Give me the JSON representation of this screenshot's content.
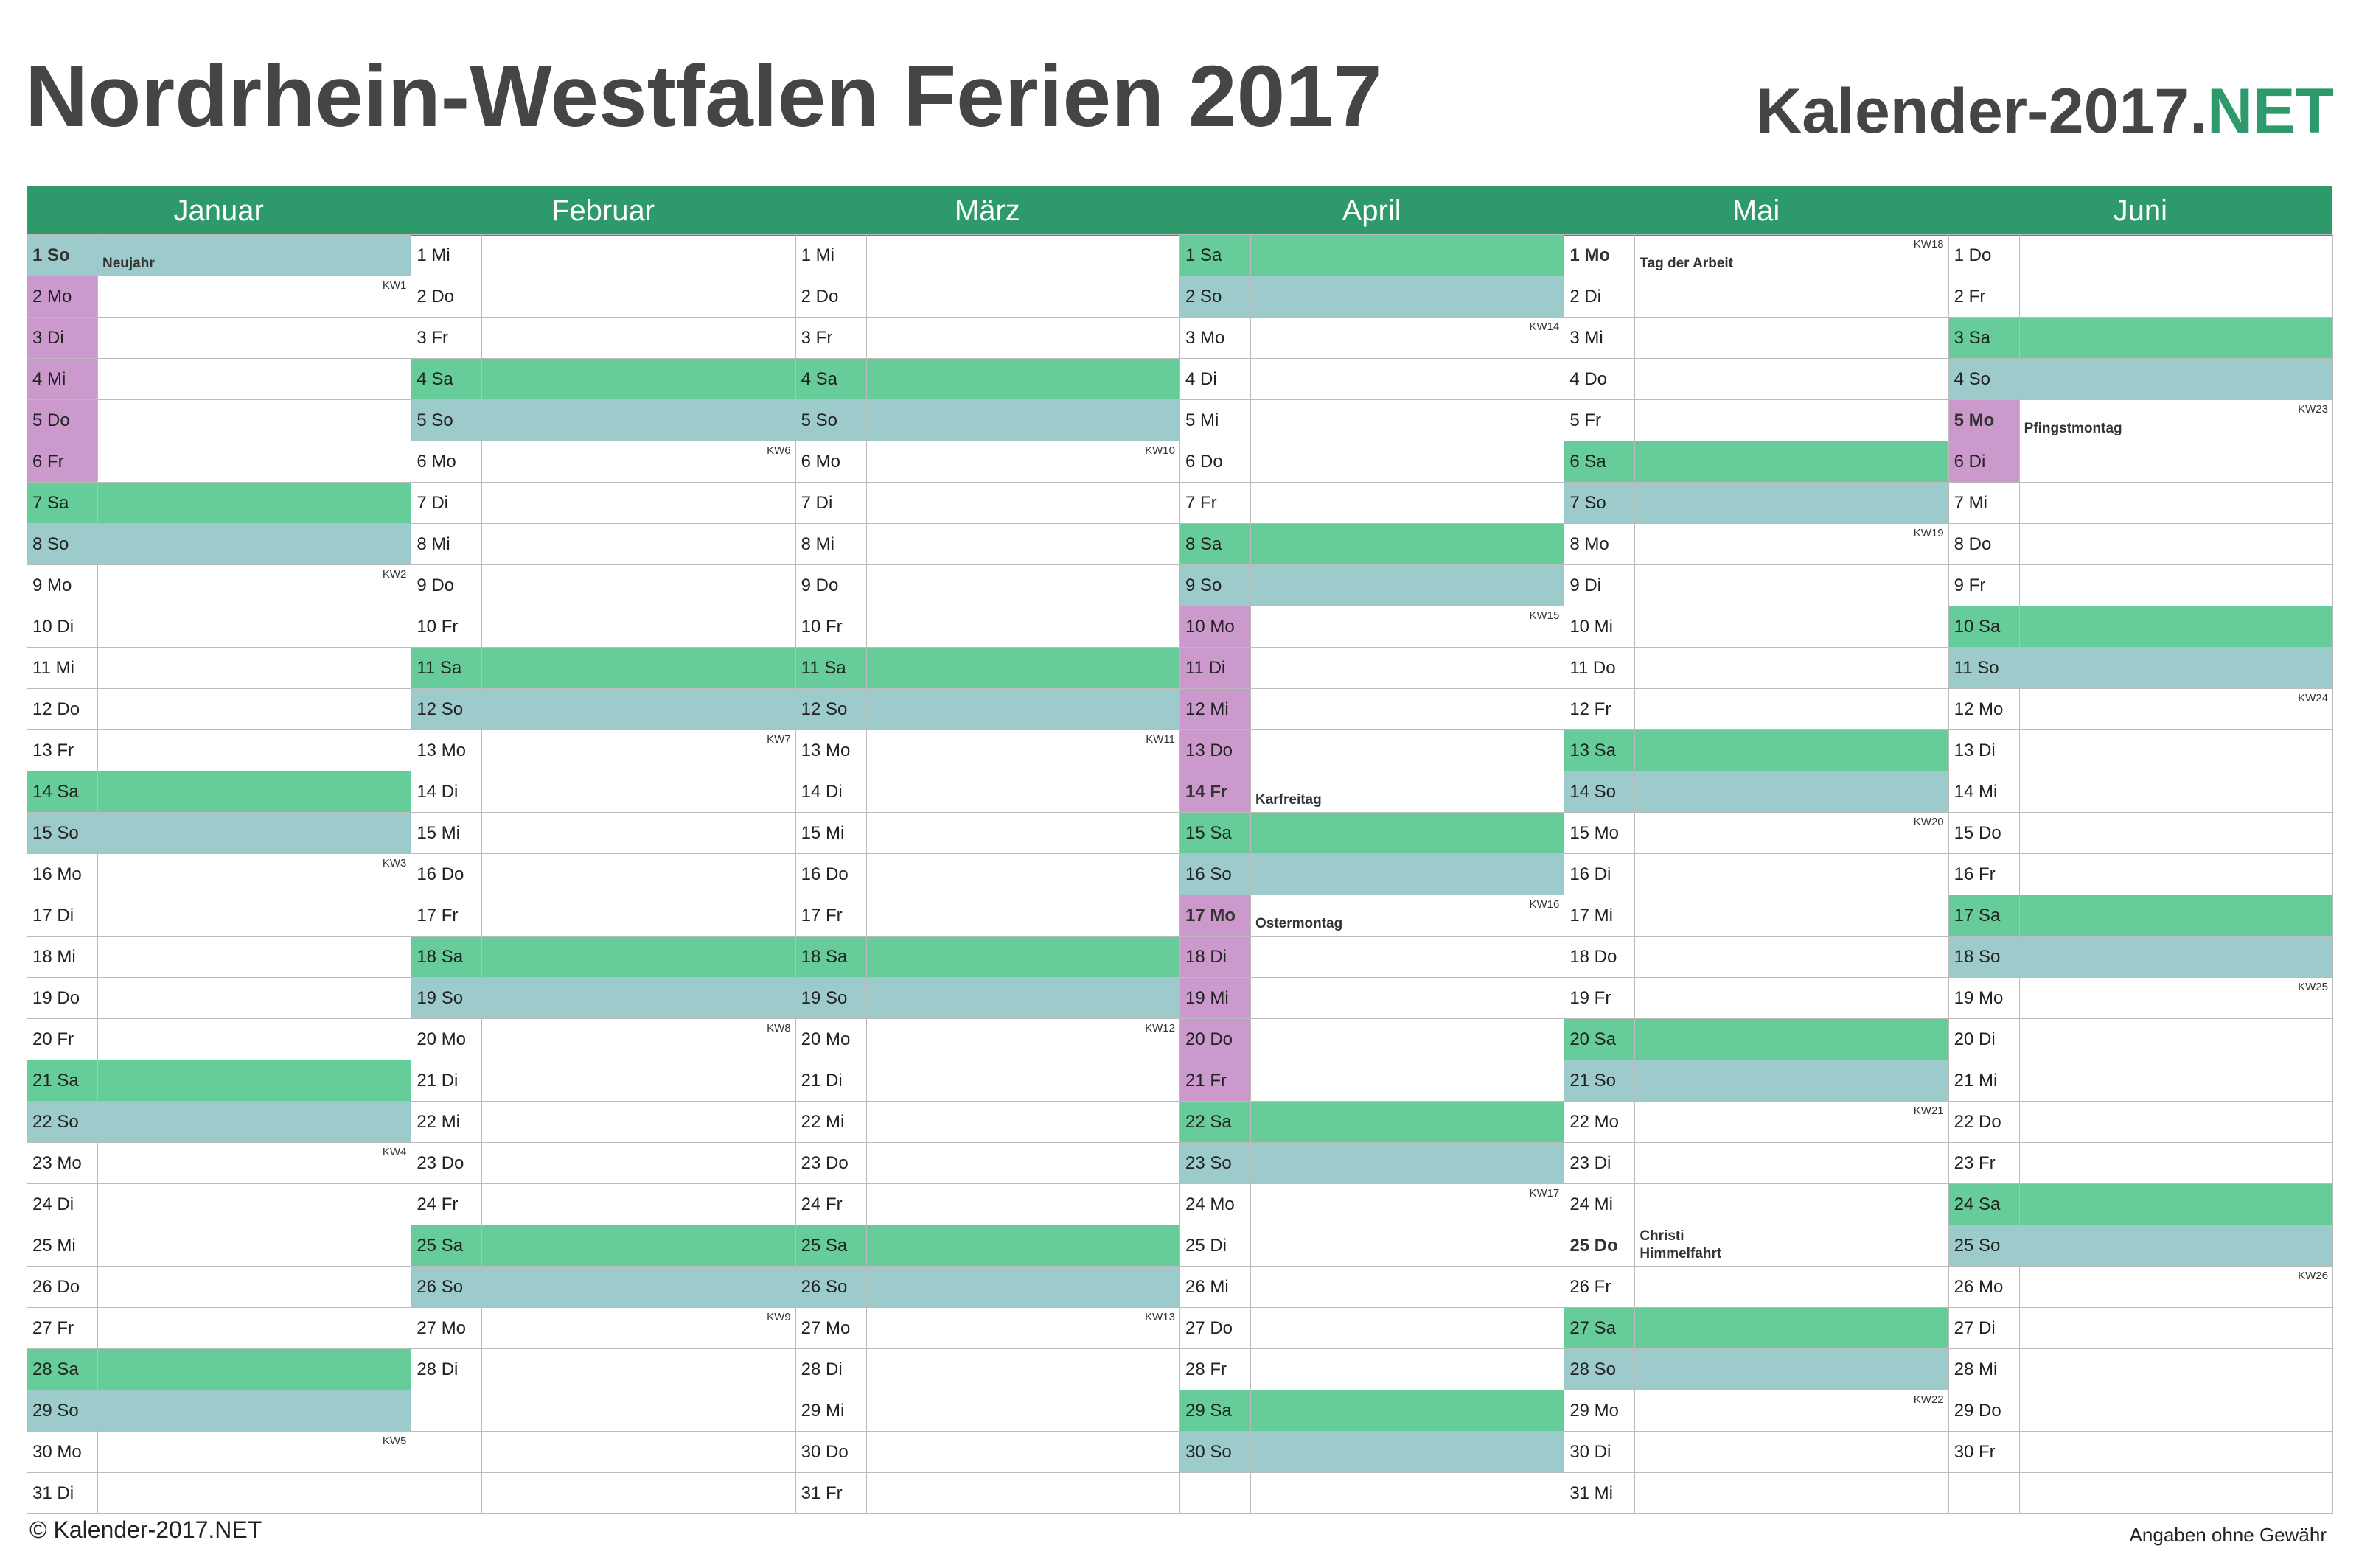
{
  "header": {
    "title": "Nordrhein-Westfalen Ferien 2017",
    "brand_main": "Kalender-2017.",
    "brand_suffix": "NET"
  },
  "footer": {
    "copyright": "© Kalender-2017.NET",
    "disclaimer": "Angaben ohne Gewähr"
  },
  "colors": {
    "accent": "#2e9a6c",
    "saturday": "#66cc99",
    "sunday": "#9dcbcb",
    "vacation": "#cc99cc",
    "title": "#454545"
  },
  "months": [
    {
      "name": "Januar",
      "days": [
        {
          "label": "1 So",
          "type": "sun",
          "holiday": "Neujahr",
          "bold": true
        },
        {
          "label": "2 Mo",
          "vac": true,
          "kw": "KW1"
        },
        {
          "label": "3 Di",
          "vac": true
        },
        {
          "label": "4 Mi",
          "vac": true
        },
        {
          "label": "5 Do",
          "vac": true
        },
        {
          "label": "6 Fr",
          "vac": true
        },
        {
          "label": "7 Sa",
          "type": "sat"
        },
        {
          "label": "8 So",
          "type": "sun"
        },
        {
          "label": "9 Mo",
          "kw": "KW2"
        },
        {
          "label": "10 Di"
        },
        {
          "label": "11 Mi"
        },
        {
          "label": "12 Do"
        },
        {
          "label": "13 Fr"
        },
        {
          "label": "14 Sa",
          "type": "sat"
        },
        {
          "label": "15 So",
          "type": "sun"
        },
        {
          "label": "16 Mo",
          "kw": "KW3"
        },
        {
          "label": "17 Di"
        },
        {
          "label": "18 Mi"
        },
        {
          "label": "19 Do"
        },
        {
          "label": "20 Fr"
        },
        {
          "label": "21 Sa",
          "type": "sat"
        },
        {
          "label": "22 So",
          "type": "sun"
        },
        {
          "label": "23 Mo",
          "kw": "KW4"
        },
        {
          "label": "24 Di"
        },
        {
          "label": "25 Mi"
        },
        {
          "label": "26 Do"
        },
        {
          "label": "27 Fr"
        },
        {
          "label": "28 Sa",
          "type": "sat"
        },
        {
          "label": "29 So",
          "type": "sun"
        },
        {
          "label": "30 Mo",
          "kw": "KW5"
        },
        {
          "label": "31 Di"
        }
      ]
    },
    {
      "name": "Februar",
      "days": [
        {
          "label": "1 Mi"
        },
        {
          "label": "2 Do"
        },
        {
          "label": "3 Fr"
        },
        {
          "label": "4 Sa",
          "type": "sat"
        },
        {
          "label": "5 So",
          "type": "sun"
        },
        {
          "label": "6 Mo",
          "kw": "KW6"
        },
        {
          "label": "7 Di"
        },
        {
          "label": "8 Mi"
        },
        {
          "label": "9 Do"
        },
        {
          "label": "10 Fr"
        },
        {
          "label": "11 Sa",
          "type": "sat"
        },
        {
          "label": "12 So",
          "type": "sun"
        },
        {
          "label": "13 Mo",
          "kw": "KW7"
        },
        {
          "label": "14 Di"
        },
        {
          "label": "15 Mi"
        },
        {
          "label": "16 Do"
        },
        {
          "label": "17 Fr"
        },
        {
          "label": "18 Sa",
          "type": "sat"
        },
        {
          "label": "19 So",
          "type": "sun"
        },
        {
          "label": "20 Mo",
          "kw": "KW8"
        },
        {
          "label": "21 Di"
        },
        {
          "label": "22 Mi"
        },
        {
          "label": "23 Do"
        },
        {
          "label": "24 Fr"
        },
        {
          "label": "25 Sa",
          "type": "sat"
        },
        {
          "label": "26 So",
          "type": "sun"
        },
        {
          "label": "27 Mo",
          "kw": "KW9"
        },
        {
          "label": "28 Di"
        }
      ]
    },
    {
      "name": "März",
      "days": [
        {
          "label": "1 Mi"
        },
        {
          "label": "2 Do"
        },
        {
          "label": "3 Fr"
        },
        {
          "label": "4 Sa",
          "type": "sat"
        },
        {
          "label": "5 So",
          "type": "sun"
        },
        {
          "label": "6 Mo",
          "kw": "KW10"
        },
        {
          "label": "7 Di"
        },
        {
          "label": "8 Mi"
        },
        {
          "label": "9 Do"
        },
        {
          "label": "10 Fr"
        },
        {
          "label": "11 Sa",
          "type": "sat"
        },
        {
          "label": "12 So",
          "type": "sun"
        },
        {
          "label": "13 Mo",
          "kw": "KW11"
        },
        {
          "label": "14 Di"
        },
        {
          "label": "15 Mi"
        },
        {
          "label": "16 Do"
        },
        {
          "label": "17 Fr"
        },
        {
          "label": "18 Sa",
          "type": "sat"
        },
        {
          "label": "19 So",
          "type": "sun"
        },
        {
          "label": "20 Mo",
          "kw": "KW12"
        },
        {
          "label": "21 Di"
        },
        {
          "label": "22 Mi"
        },
        {
          "label": "23 Do"
        },
        {
          "label": "24 Fr"
        },
        {
          "label": "25 Sa",
          "type": "sat"
        },
        {
          "label": "26 So",
          "type": "sun"
        },
        {
          "label": "27 Mo",
          "kw": "KW13"
        },
        {
          "label": "28 Di"
        },
        {
          "label": "29 Mi"
        },
        {
          "label": "30 Do"
        },
        {
          "label": "31 Fr"
        }
      ]
    },
    {
      "name": "April",
      "days": [
        {
          "label": "1 Sa",
          "type": "sat"
        },
        {
          "label": "2 So",
          "type": "sun"
        },
        {
          "label": "3 Mo",
          "kw": "KW14"
        },
        {
          "label": "4 Di"
        },
        {
          "label": "5 Mi"
        },
        {
          "label": "6 Do"
        },
        {
          "label": "7 Fr"
        },
        {
          "label": "8 Sa",
          "type": "sat"
        },
        {
          "label": "9 So",
          "type": "sun"
        },
        {
          "label": "10 Mo",
          "vac": true,
          "kw": "KW15"
        },
        {
          "label": "11 Di",
          "vac": true
        },
        {
          "label": "12 Mi",
          "vac": true
        },
        {
          "label": "13 Do",
          "vac": true
        },
        {
          "label": "14 Fr",
          "vac": true,
          "holiday": "Karfreitag",
          "bold": true
        },
        {
          "label": "15 Sa",
          "type": "sat"
        },
        {
          "label": "16 So",
          "type": "sun"
        },
        {
          "label": "17 Mo",
          "vac": true,
          "holiday": "Ostermontag",
          "bold": true,
          "kw": "KW16"
        },
        {
          "label": "18 Di",
          "vac": true
        },
        {
          "label": "19 Mi",
          "vac": true
        },
        {
          "label": "20 Do",
          "vac": true
        },
        {
          "label": "21 Fr",
          "vac": true
        },
        {
          "label": "22 Sa",
          "type": "sat"
        },
        {
          "label": "23 So",
          "type": "sun"
        },
        {
          "label": "24 Mo",
          "kw": "KW17"
        },
        {
          "label": "25 Di"
        },
        {
          "label": "26 Mi"
        },
        {
          "label": "27 Do"
        },
        {
          "label": "28 Fr"
        },
        {
          "label": "29 Sa",
          "type": "sat"
        },
        {
          "label": "30 So",
          "type": "sun"
        }
      ]
    },
    {
      "name": "Mai",
      "days": [
        {
          "label": "1 Mo",
          "holiday": "Tag der Arbeit",
          "bold": true,
          "kw": "KW18"
        },
        {
          "label": "2 Di"
        },
        {
          "label": "3 Mi"
        },
        {
          "label": "4 Do"
        },
        {
          "label": "5 Fr"
        },
        {
          "label": "6 Sa",
          "type": "sat"
        },
        {
          "label": "7 So",
          "type": "sun"
        },
        {
          "label": "8 Mo",
          "kw": "KW19"
        },
        {
          "label": "9 Di"
        },
        {
          "label": "10 Mi"
        },
        {
          "label": "11 Do"
        },
        {
          "label": "12 Fr"
        },
        {
          "label": "13 Sa",
          "type": "sat"
        },
        {
          "label": "14 So",
          "type": "sun"
        },
        {
          "label": "15 Mo",
          "kw": "KW20"
        },
        {
          "label": "16 Di"
        },
        {
          "label": "17 Mi"
        },
        {
          "label": "18 Do"
        },
        {
          "label": "19 Fr"
        },
        {
          "label": "20 Sa",
          "type": "sat"
        },
        {
          "label": "21 So",
          "type": "sun"
        },
        {
          "label": "22 Mo",
          "kw": "KW21"
        },
        {
          "label": "23 Di"
        },
        {
          "label": "24 Mi"
        },
        {
          "label": "25 Do",
          "holiday": "Christi Himmelfahrt",
          "bold": true
        },
        {
          "label": "26 Fr"
        },
        {
          "label": "27 Sa",
          "type": "sat"
        },
        {
          "label": "28 So",
          "type": "sun"
        },
        {
          "label": "29 Mo",
          "kw": "KW22"
        },
        {
          "label": "30 Di"
        },
        {
          "label": "31 Mi"
        }
      ]
    },
    {
      "name": "Juni",
      "days": [
        {
          "label": "1 Do"
        },
        {
          "label": "2 Fr"
        },
        {
          "label": "3 Sa",
          "type": "sat"
        },
        {
          "label": "4 So",
          "type": "sun"
        },
        {
          "label": "5 Mo",
          "vac": true,
          "holiday": "Pfingstmontag",
          "bold": true,
          "kw": "KW23"
        },
        {
          "label": "6 Di",
          "vac": true
        },
        {
          "label": "7 Mi"
        },
        {
          "label": "8 Do"
        },
        {
          "label": "9 Fr"
        },
        {
          "label": "10 Sa",
          "type": "sat"
        },
        {
          "label": "11 So",
          "type": "sun"
        },
        {
          "label": "12 Mo",
          "kw": "KW24"
        },
        {
          "label": "13 Di"
        },
        {
          "label": "14 Mi"
        },
        {
          "label": "15 Do"
        },
        {
          "label": "16 Fr"
        },
        {
          "label": "17 Sa",
          "type": "sat"
        },
        {
          "label": "18 So",
          "type": "sun"
        },
        {
          "label": "19 Mo",
          "kw": "KW25"
        },
        {
          "label": "20 Di"
        },
        {
          "label": "21 Mi"
        },
        {
          "label": "22 Do"
        },
        {
          "label": "23 Fr"
        },
        {
          "label": "24 Sa",
          "type": "sat"
        },
        {
          "label": "25 So",
          "type": "sun"
        },
        {
          "label": "26 Mo",
          "kw": "KW26"
        },
        {
          "label": "27 Di"
        },
        {
          "label": "28 Mi"
        },
        {
          "label": "29 Do"
        },
        {
          "label": "30 Fr"
        }
      ]
    }
  ]
}
